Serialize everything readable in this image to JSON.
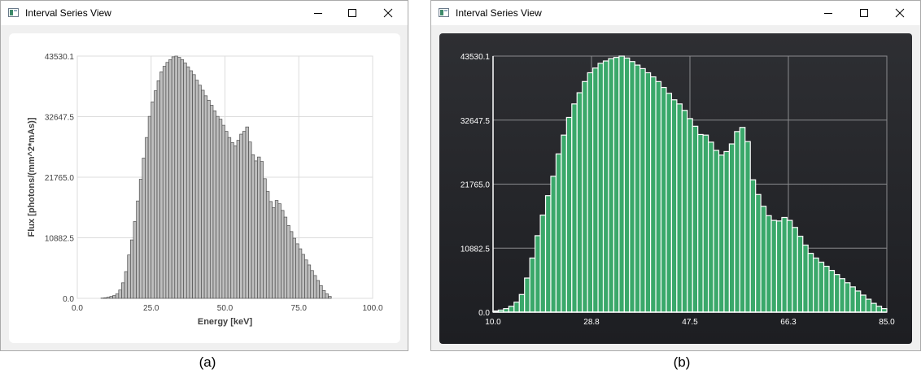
{
  "window_a": {
    "title": "Interval Series View",
    "caption": "(a)"
  },
  "window_b": {
    "title": "Interval Series View",
    "caption": "(b)"
  },
  "icons": {
    "app": "app-window-icon",
    "minimize": "minimize-icon",
    "maximize": "maximize-icon",
    "close": "close-icon"
  },
  "chart_data": [
    {
      "type": "bar",
      "theme": "light",
      "bar_color": "#bfbfbf",
      "bar_edge": "#505050",
      "xlabel": "Energy [keV]",
      "ylabel": "Flux [photons/(mm^2*mAs)]",
      "xlim": [
        0,
        100
      ],
      "ylim": [
        0,
        43530.1
      ],
      "xticks": [
        "0.0",
        "25.0",
        "50.0",
        "75.0",
        "100.0"
      ],
      "yticks": [
        "0.0",
        "10882.5",
        "21765.0",
        "32647.5",
        "43530.1"
      ],
      "grid": true,
      "bin_width": 1,
      "x": [
        8,
        9,
        10,
        11,
        12,
        13,
        14,
        15,
        16,
        17,
        18,
        19,
        20,
        21,
        22,
        23,
        24,
        25,
        26,
        27,
        28,
        29,
        30,
        31,
        32,
        33,
        34,
        35,
        36,
        37,
        38,
        39,
        40,
        41,
        42,
        43,
        44,
        45,
        46,
        47,
        48,
        49,
        50,
        51,
        52,
        53,
        54,
        55,
        56,
        57,
        58,
        59,
        60,
        61,
        62,
        63,
        64,
        65,
        66,
        67,
        68,
        69,
        70,
        71,
        72,
        73,
        74,
        75,
        76,
        77,
        78,
        79,
        80,
        81,
        82,
        83,
        84,
        85
      ],
      "values": [
        50,
        100,
        200,
        350,
        500,
        800,
        1500,
        2800,
        4800,
        7800,
        10500,
        13800,
        17500,
        21400,
        25200,
        28900,
        32700,
        35300,
        37300,
        39100,
        40700,
        41700,
        42400,
        42900,
        43400,
        43530,
        43300,
        42900,
        42300,
        41600,
        40900,
        40200,
        39200,
        38300,
        37400,
        36400,
        35600,
        34700,
        33700,
        32700,
        32200,
        31100,
        30000,
        28900,
        28000,
        27400,
        28400,
        29500,
        30000,
        30800,
        28100,
        25800,
        24700,
        25400,
        24600,
        21500,
        19200,
        17400,
        16300,
        17600,
        17000,
        15800,
        14600,
        13100,
        12000,
        10800,
        9800,
        8900,
        7900,
        6900,
        6000,
        5000,
        4100,
        3200,
        2300,
        1400,
        800,
        350
      ]
    },
    {
      "type": "bar",
      "theme": "dark",
      "bar_color": "#3aa86a",
      "bar_edge": "#ffffff",
      "xlim": [
        10.0,
        85.0
      ],
      "ylim": [
        0,
        43530.1
      ],
      "xticks": [
        "10.0",
        "28.8",
        "47.5",
        "66.3",
        "85.0"
      ],
      "yticks": [
        "0.0",
        "10882.5",
        "21765.0",
        "32647.5",
        "43530.1"
      ],
      "grid": true,
      "bin_width": 1,
      "x": [
        10,
        11,
        12,
        13,
        14,
        15,
        16,
        17,
        18,
        19,
        20,
        21,
        22,
        23,
        24,
        25,
        26,
        27,
        28,
        29,
        30,
        31,
        32,
        33,
        34,
        35,
        36,
        37,
        38,
        39,
        40,
        41,
        42,
        43,
        44,
        45,
        46,
        47,
        48,
        49,
        50,
        51,
        52,
        53,
        54,
        55,
        56,
        57,
        58,
        59,
        60,
        61,
        62,
        63,
        64,
        65,
        66,
        67,
        68,
        69,
        70,
        71,
        72,
        73,
        74,
        75,
        76,
        77,
        78,
        79,
        80,
        81,
        82,
        83,
        84
      ],
      "values": [
        200,
        350,
        600,
        1000,
        1700,
        3000,
        5800,
        9200,
        13000,
        16500,
        19800,
        23100,
        26900,
        30100,
        33100,
        35400,
        37300,
        39200,
        40700,
        41500,
        42300,
        42700,
        43100,
        43300,
        43530,
        43200,
        42600,
        42000,
        41400,
        40700,
        40000,
        39200,
        38200,
        37200,
        36100,
        35400,
        34300,
        32900,
        31600,
        30200,
        30100,
        28900,
        27500,
        26700,
        27300,
        28600,
        30700,
        31400,
        29000,
        22500,
        20000,
        18000,
        16400,
        15600,
        15500,
        16100,
        15600,
        14400,
        12900,
        11400,
        10000,
        9200,
        8500,
        7800,
        7100,
        6400,
        5700,
        5000,
        4300,
        3600,
        2900,
        2200,
        1500,
        1000,
        600
      ]
    }
  ]
}
